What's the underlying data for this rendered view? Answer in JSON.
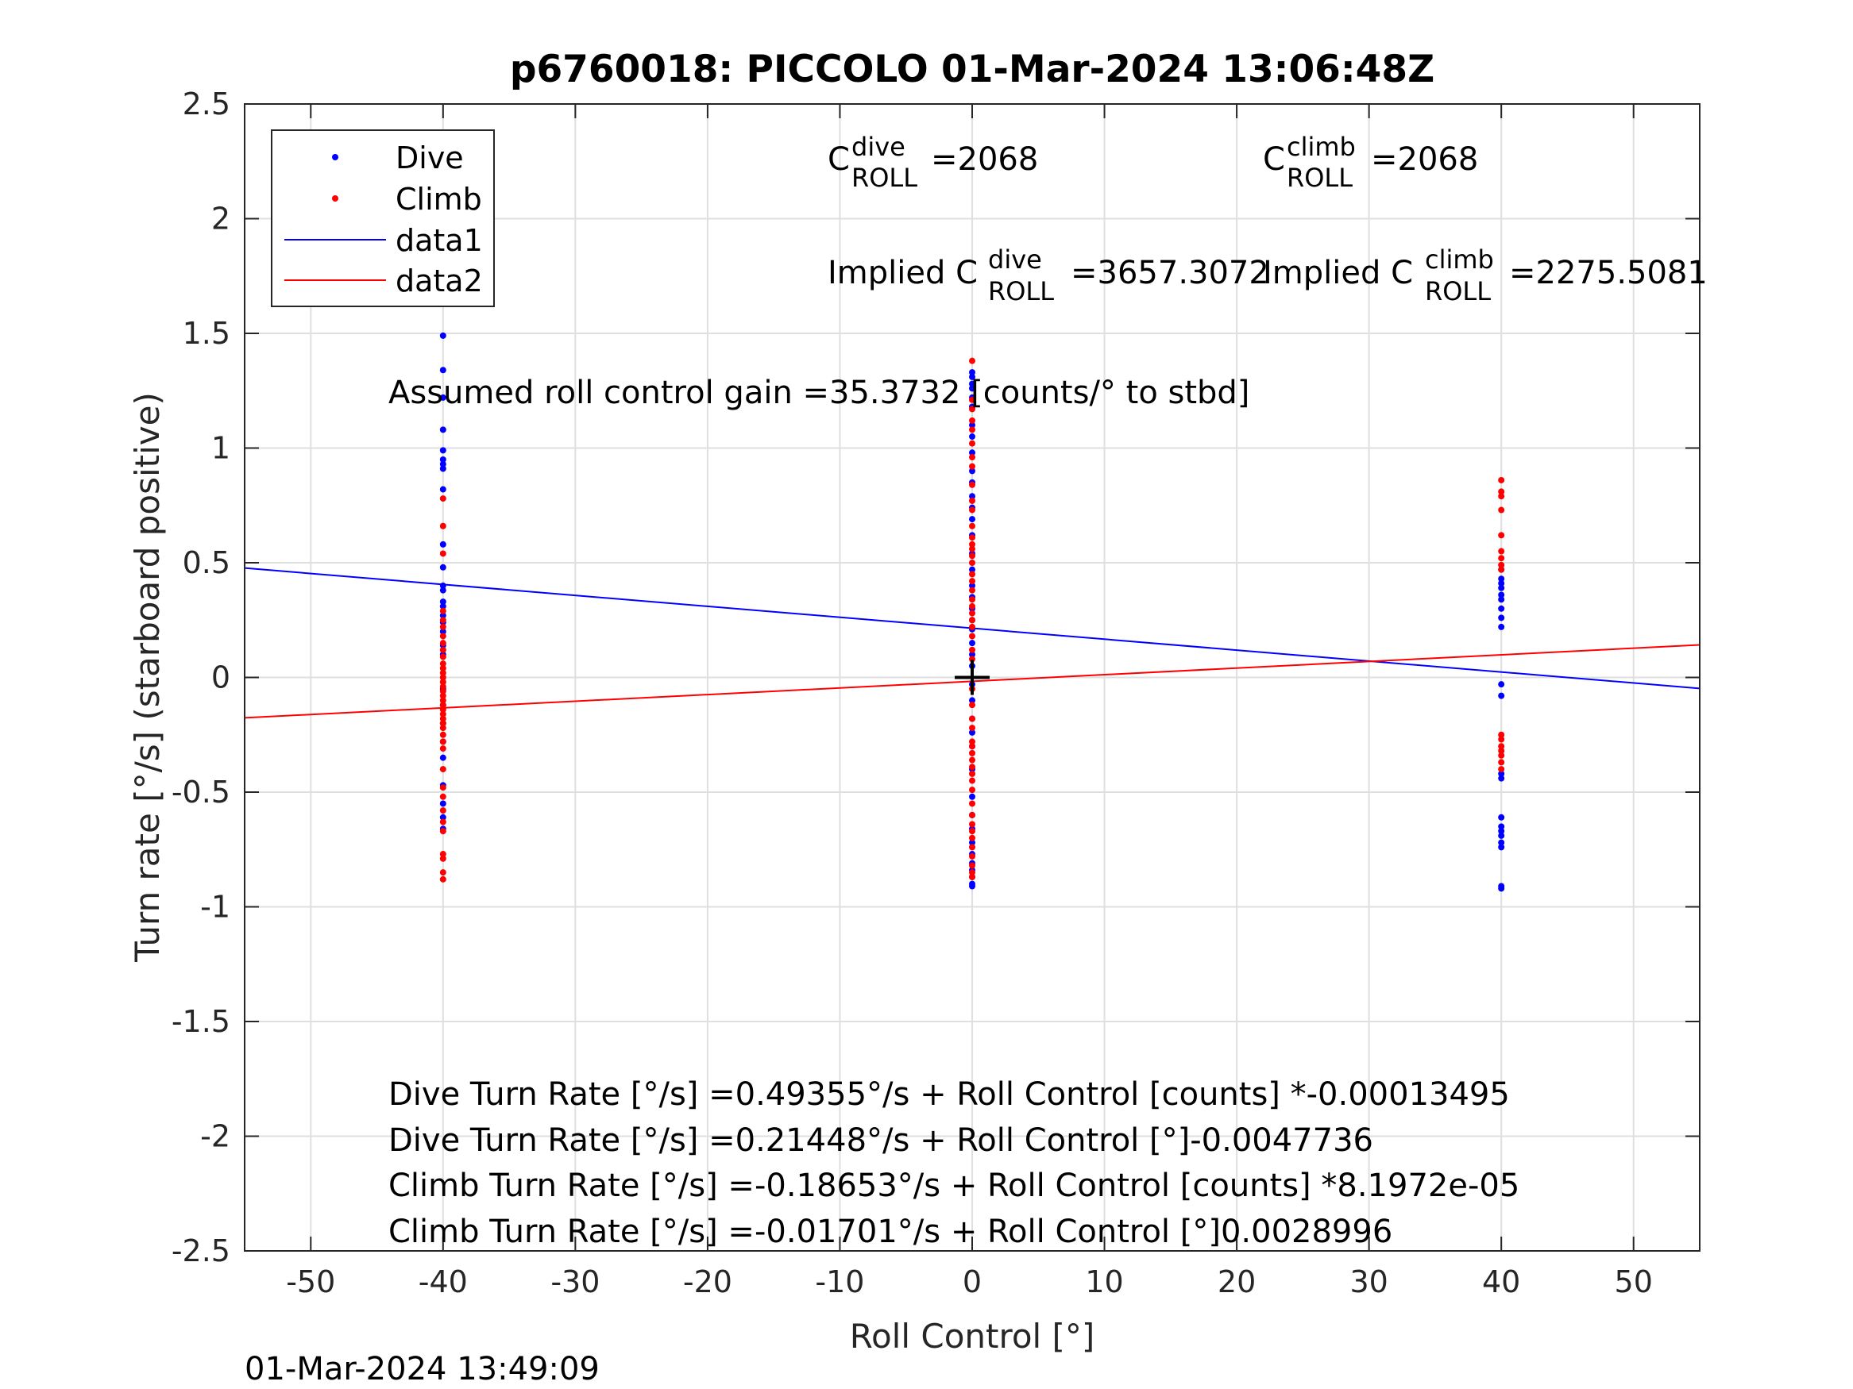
{
  "chart_data": {
    "type": "scatter",
    "title": "p6760018: PICCOLO 01-Mar-2024 13:06:48Z",
    "xlabel": "Roll Control [°]",
    "ylabel": "Turn rate [°/s] (starboard positive)",
    "xlim": [
      -55,
      55
    ],
    "ylim": [
      -2.5,
      2.5
    ],
    "xticks": [
      -50,
      -40,
      -30,
      -20,
      -10,
      0,
      10,
      20,
      30,
      40,
      50
    ],
    "xtick_labels": [
      "-50",
      "-40",
      "-30",
      "-20",
      "-10",
      "0",
      "10",
      "20",
      "30",
      "40",
      "50"
    ],
    "yticks": [
      -2.5,
      -2,
      -1.5,
      -1,
      -0.5,
      0,
      0.5,
      1,
      1.5,
      2,
      2.5
    ],
    "ytick_labels": [
      "-2.5",
      "-2",
      "-1.5",
      "-1",
      "-0.5",
      "0",
      "0.5",
      "1",
      "1.5",
      "2",
      "2.5"
    ],
    "grid": true,
    "legend_position": "top-left",
    "legend": [
      "Dive",
      "Climb",
      "data1",
      "data2"
    ],
    "colors": {
      "dive": "#0000ff",
      "climb": "#ff0000",
      "marker": "#000000"
    },
    "series": [
      {
        "name": "Dive",
        "kind": "points",
        "color": "#0000ff",
        "groups": [
          {
            "x": -40,
            "y": [
              1.49,
              1.34,
              1.22,
              1.08,
              0.99,
              0.95,
              0.93,
              0.91,
              0.82,
              0.58,
              0.48,
              0.4,
              0.38,
              0.33,
              0.31,
              0.27,
              0.24,
              0.2,
              0.14,
              0.1,
              -0.05,
              -0.12,
              -0.2,
              -0.28,
              -0.35,
              -0.47,
              -0.55,
              -0.61,
              -0.66
            ]
          },
          {
            "x": 0,
            "y": [
              1.33,
              1.31,
              1.28,
              1.26,
              1.22,
              1.18,
              1.1,
              1.05,
              0.98,
              0.9,
              0.85,
              0.79,
              0.74,
              0.69,
              0.62,
              0.54,
              0.47,
              0.4,
              0.35,
              0.3,
              0.25,
              0.21,
              0.15,
              0.1,
              0.05,
              -0.03,
              -0.1,
              -0.18,
              -0.24,
              -0.3,
              -0.4,
              -0.52,
              -0.6,
              -0.66,
              -0.72,
              -0.77,
              -0.81,
              -0.84,
              -0.87,
              -0.9,
              -0.91
            ]
          },
          {
            "x": 40,
            "y": [
              0.47,
              0.43,
              0.41,
              0.39,
              0.36,
              0.34,
              0.3,
              0.26,
              0.22,
              -0.03,
              -0.08,
              -0.42,
              -0.44,
              -0.61,
              -0.65,
              -0.67,
              -0.69,
              -0.72,
              -0.74,
              -0.91,
              -0.92
            ]
          }
        ]
      },
      {
        "name": "Climb",
        "kind": "points",
        "color": "#ff0000",
        "groups": [
          {
            "x": -40,
            "y": [
              0.78,
              0.66,
              0.54,
              0.29,
              0.25,
              0.22,
              0.18,
              0.15,
              0.12,
              0.09,
              0.06,
              0.04,
              0.02,
              0.0,
              -0.02,
              -0.04,
              -0.06,
              -0.08,
              -0.1,
              -0.12,
              -0.14,
              -0.16,
              -0.18,
              -0.2,
              -0.22,
              -0.25,
              -0.28,
              -0.31,
              -0.4,
              -0.48,
              -0.52,
              -0.58,
              -0.63,
              -0.67,
              -0.77,
              -0.79,
              -0.85,
              -0.88
            ]
          },
          {
            "x": 0,
            "y": [
              1.38,
              1.21,
              1.17,
              1.12,
              1.08,
              1.02,
              0.96,
              0.92,
              0.84,
              0.77,
              0.73,
              0.66,
              0.61,
              0.58,
              0.56,
              0.53,
              0.5,
              0.45,
              0.42,
              0.38,
              0.34,
              0.31,
              0.28,
              0.25,
              0.22,
              0.18,
              0.12,
              0.08,
              -0.05,
              -0.12,
              -0.18,
              -0.22,
              -0.28,
              -0.3,
              -0.33,
              -0.36,
              -0.39,
              -0.42,
              -0.45,
              -0.49,
              -0.55,
              -0.6,
              -0.64,
              -0.67,
              -0.7,
              -0.74,
              -0.78,
              -0.82,
              -0.85,
              -0.87
            ]
          },
          {
            "x": 40,
            "y": [
              0.86,
              0.81,
              0.79,
              0.73,
              0.62,
              0.55,
              0.52,
              0.49,
              0.47,
              -0.25,
              -0.27,
              -0.3,
              -0.32,
              -0.34,
              -0.37,
              -0.4
            ]
          }
        ]
      },
      {
        "name": "data1",
        "kind": "line",
        "color": "#0000ff",
        "x": [
          -55,
          55
        ],
        "y": [
          0.477,
          -0.048
        ]
      },
      {
        "name": "data2",
        "kind": "line",
        "color": "#ff0000",
        "x": [
          -55,
          55
        ],
        "y": [
          -0.176,
          0.142
        ]
      }
    ],
    "marker": {
      "x": 0,
      "y": 0,
      "symbol": "+",
      "color": "#000000"
    },
    "annotations": {
      "c_dive_base": "C",
      "c_dive_sup": "dive",
      "c_dive_sub": "ROLL",
      "c_dive_value": "=2068",
      "c_climb_base": "C",
      "c_climb_sup": "climb",
      "c_climb_sub": "ROLL",
      "c_climb_value": "=2068",
      "implied_dive_prefix": "Implied C",
      "implied_dive_sup": "dive",
      "implied_dive_sub": "ROLL",
      "implied_dive_value": "=3657.3072",
      "implied_climb_prefix": "Implied C",
      "implied_climb_sup": "climb",
      "implied_climb_sub": "ROLL",
      "implied_climb_value": "=2275.5081",
      "gain": "Assumed roll control gain =35.3732 [counts/° to stbd]",
      "eq1": "Dive Turn Rate [°/s] =0.49355°/s + Roll Control [counts] *-0.00013495",
      "eq2": "Dive Turn Rate [°/s] =0.21448°/s + Roll Control [°]-0.0047736",
      "eq3": "Climb Turn Rate [°/s] =-0.18653°/s + Roll Control [counts] *8.1972e-05",
      "eq4": "Climb Turn Rate [°/s] =-0.01701°/s + Roll Control [°]0.0028996"
    },
    "timestamp": "01-Mar-2024 13:49:09"
  }
}
